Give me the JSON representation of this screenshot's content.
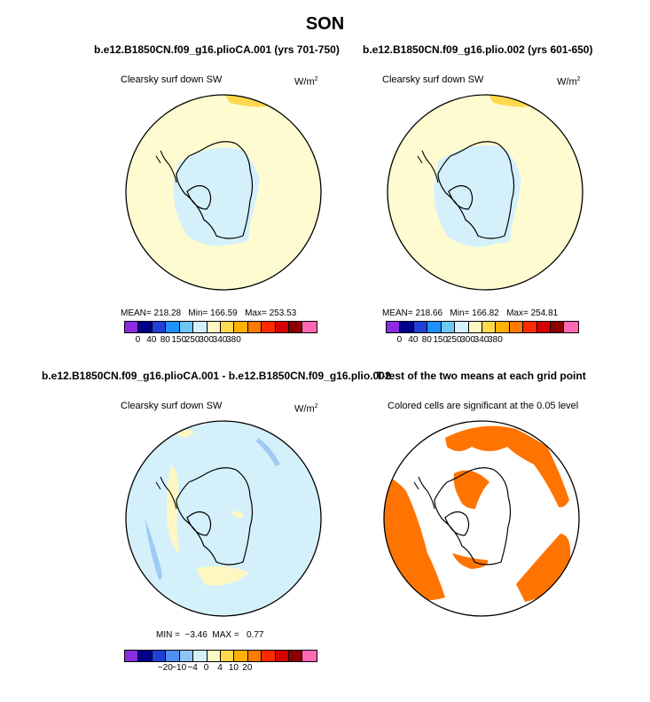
{
  "main_title": "SON",
  "panels": [
    {
      "title": "b.e12.B1850CN.f09_g16.plioCA.001 (yrs 701-750)",
      "label": "Clearsky surf down SW",
      "units": "W/m",
      "units_sup": "2",
      "stats": "MEAN= 218.28   Min= 166.59   Max= 253.53"
    },
    {
      "title": "b.e12.B1850CN.f09_g16.plio.002 (yrs 601-650)",
      "label": "Clearsky surf down SW",
      "units": "W/m",
      "units_sup": "2",
      "stats": "MEAN= 218.66   Min= 166.82   Max= 254.81"
    },
    {
      "title": "b.e12.B1850CN.f09_g16.plioCA.001 - b.e12.B1850CN.f09_g16.plio.002",
      "label": "Clearsky surf down SW",
      "units": "W/m",
      "units_sup": "2",
      "stats": "MIN =  −3.46  MAX =   0.77"
    },
    {
      "title": "T-test of the two means at each grid point",
      "label": "Colored cells are significant at the 0.05 level"
    }
  ],
  "colorbar_top": {
    "colors": [
      "#8b2be2",
      "#00008b",
      "#1f3fd6",
      "#1e90ff",
      "#6ec6f5",
      "#d4f1fb",
      "#fff7c2",
      "#ffd84d",
      "#ffb000",
      "#ff7a00",
      "#ff2a00",
      "#d60000",
      "#8b0000",
      "#ff69b4"
    ],
    "ticks": [
      "0",
      "40",
      "80",
      "150",
      "250",
      "300",
      "340",
      "380"
    ]
  },
  "colorbar_bottom": {
    "colors": [
      "#8b2be2",
      "#00008b",
      "#1f3fd6",
      "#4f8df0",
      "#8fc3f5",
      "#d4f1fb",
      "#fff7c2",
      "#ffd84d",
      "#ffb000",
      "#ff7a00",
      "#ff2a00",
      "#d60000",
      "#8b0000",
      "#ff69b4"
    ],
    "ticks": [
      "−20",
      "−10",
      "−4",
      "0",
      "4",
      "10",
      "20"
    ]
  },
  "colors": {
    "ocean_fill": "#fffbd1",
    "ice_fill": "#d4f1fb",
    "diff_fill": "#d4f1fb",
    "diff_low": "#9ecbf5",
    "diff_high": "#fff7c2",
    "sig_fill": "#ff7300",
    "coast": "#000000",
    "yellow_band": "#ffd84d"
  }
}
